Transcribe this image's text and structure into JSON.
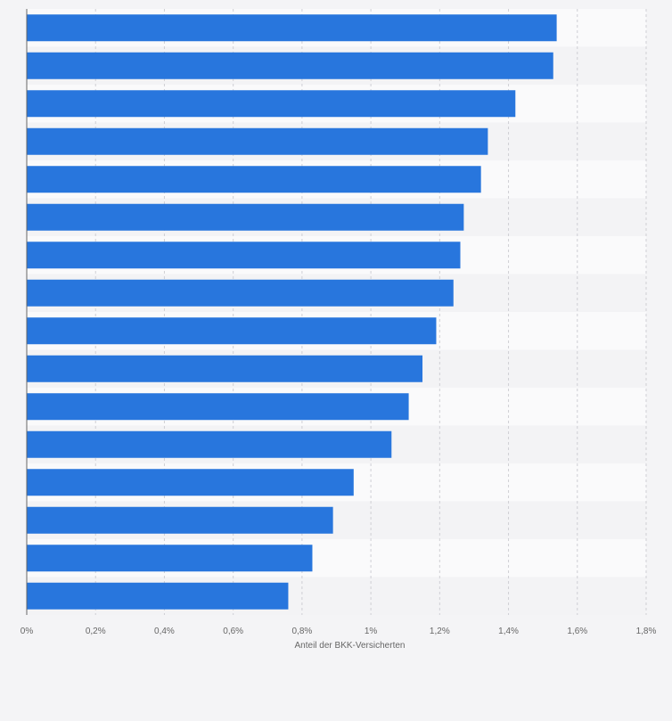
{
  "chart_data": {
    "type": "bar",
    "orientation": "horizontal",
    "title": "",
    "xlabel": "Anteil der BKK-Versicherten",
    "ylabel": "",
    "unit": "%",
    "xlim": [
      0,
      1.8
    ],
    "x_ticks": [
      0,
      0.2,
      0.4,
      0.6,
      0.8,
      1.0,
      1.2,
      1.4,
      1.6,
      1.8
    ],
    "x_tick_labels": [
      "0%",
      "0,2%",
      "0,4%",
      "0,6%",
      "0,8%",
      "1%",
      "1,2%",
      "1,4%",
      "1,6%",
      "1,8%"
    ],
    "categories": [
      "",
      "",
      "",
      "",
      "",
      "",
      "",
      "",
      "",
      "",
      "",
      "",
      "",
      "",
      "",
      ""
    ],
    "values": [
      1.54,
      1.53,
      1.42,
      1.34,
      1.32,
      1.27,
      1.26,
      1.24,
      1.19,
      1.15,
      1.11,
      1.06,
      0.95,
      0.89,
      0.83,
      0.76
    ],
    "grid": true,
    "legend": "none",
    "colors": {
      "bar": "#2876dd",
      "band_light": "#fafafb",
      "band_dark": "#f3f3f5",
      "background": "#f4f4f6"
    }
  }
}
